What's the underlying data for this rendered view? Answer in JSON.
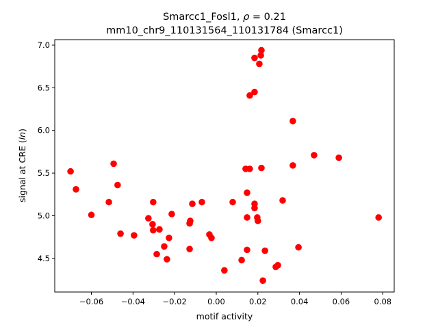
{
  "chart_data": {
    "type": "scatter",
    "title_line1_prefix": "Smarcc1_Fosl1, ",
    "title_rho_symbol": "ρ",
    "title_rho_value": " = 0.21",
    "title_line2": "mm10_chr9_110131564_110131784 (Smarcc1)",
    "xlabel": "motif activity",
    "ylabel": "signal at CRE (ln)",
    "xlim": [
      -0.0776,
      0.0855
    ],
    "ylim": [
      4.106,
      7.064
    ],
    "xticks": [
      -0.06,
      -0.04,
      -0.02,
      0.0,
      0.02,
      0.04,
      0.06,
      0.08
    ],
    "xtick_labels": [
      "−0.06",
      "−0.04",
      "−0.02",
      "0.00",
      "0.02",
      "0.04",
      "0.06",
      "0.08"
    ],
    "yticks": [
      4.5,
      5.0,
      5.5,
      6.0,
      6.5,
      7.0
    ],
    "ytick_labels": [
      "4.5",
      "5.0",
      "5.5",
      "6.0",
      "6.5",
      "7.0"
    ],
    "grid": false,
    "marker_color": "#ff0000",
    "points": [
      [
        -0.07,
        5.52
      ],
      [
        -0.0674,
        5.31
      ],
      [
        -0.06,
        5.01
      ],
      [
        -0.0516,
        5.16
      ],
      [
        -0.0493,
        5.61
      ],
      [
        -0.0474,
        5.36
      ],
      [
        -0.046,
        4.79
      ],
      [
        -0.0395,
        4.77
      ],
      [
        -0.0326,
        4.97
      ],
      [
        -0.0306,
        4.9
      ],
      [
        -0.0303,
        5.16
      ],
      [
        -0.0303,
        4.83
      ],
      [
        -0.0286,
        4.55
      ],
      [
        -0.0273,
        4.84
      ],
      [
        -0.025,
        4.64
      ],
      [
        -0.0237,
        4.49
      ],
      [
        -0.0227,
        4.74
      ],
      [
        -0.0214,
        5.02
      ],
      [
        -0.0128,
        4.61
      ],
      [
        -0.0128,
        4.91
      ],
      [
        -0.0125,
        4.94
      ],
      [
        -0.0115,
        5.14
      ],
      [
        -0.0069,
        5.16
      ],
      [
        -0.0033,
        4.78
      ],
      [
        -0.0023,
        4.74
      ],
      [
        0.0039,
        4.36
      ],
      [
        0.0079,
        5.16
      ],
      [
        0.0122,
        4.48
      ],
      [
        0.0141,
        5.55
      ],
      [
        0.0148,
        4.98
      ],
      [
        0.0148,
        5.27
      ],
      [
        0.0148,
        4.6
      ],
      [
        0.0161,
        5.55
      ],
      [
        0.0161,
        6.41
      ],
      [
        0.0184,
        5.14
      ],
      [
        0.0184,
        5.09
      ],
      [
        0.0184,
        6.45
      ],
      [
        0.0184,
        6.85
      ],
      [
        0.0197,
        4.98
      ],
      [
        0.02,
        4.94
      ],
      [
        0.0207,
        6.78
      ],
      [
        0.0214,
        6.88
      ],
      [
        0.0217,
        6.94
      ],
      [
        0.0217,
        5.56
      ],
      [
        0.0224,
        4.24
      ],
      [
        0.0234,
        4.59
      ],
      [
        0.0286,
        4.4
      ],
      [
        0.0296,
        4.42
      ],
      [
        0.0319,
        5.18
      ],
      [
        0.0368,
        6.11
      ],
      [
        0.0368,
        5.59
      ],
      [
        0.0395,
        4.63
      ],
      [
        0.047,
        5.71
      ],
      [
        0.0589,
        5.68
      ],
      [
        0.078,
        4.98
      ]
    ]
  }
}
